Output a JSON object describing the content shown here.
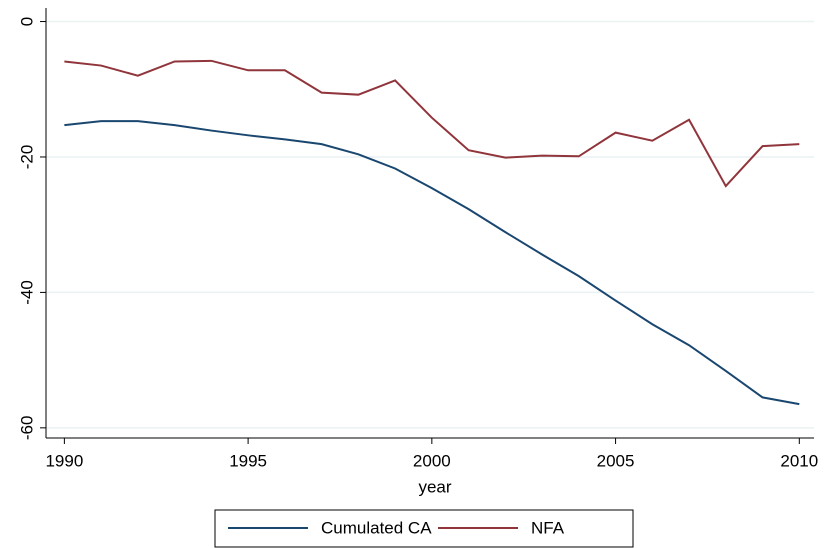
{
  "chart_data": {
    "type": "line",
    "x_label": "year",
    "x": [
      1990,
      1991,
      1992,
      1993,
      1994,
      1995,
      1996,
      1997,
      1998,
      1999,
      2000,
      2001,
      2002,
      2003,
      2004,
      2005,
      2006,
      2007,
      2008,
      2009,
      2010
    ],
    "series": [
      {
        "name": "Cumulated CA",
        "color": "#1a476f",
        "values": [
          -15.3,
          -14.7,
          -14.7,
          -15.3,
          -16.1,
          -16.8,
          -17.4,
          -18.1,
          -19.6,
          -21.7,
          -24.6,
          -27.7,
          -31.1,
          -34.4,
          -37.6,
          -41.2,
          -44.7,
          -47.8,
          -51.6,
          -55.5,
          -56.5
        ]
      },
      {
        "name": "NFA",
        "color": "#90353b",
        "values": [
          -5.9,
          -6.5,
          -8.0,
          -5.9,
          -5.8,
          -7.2,
          -7.2,
          -10.5,
          -10.8,
          -8.7,
          -14.2,
          -19.0,
          -20.1,
          -19.8,
          -19.9,
          -16.4,
          -17.6,
          -14.5,
          -24.3,
          -18.4,
          -18.1
        ]
      }
    ],
    "xlim": [
      1989.5,
      2010.4
    ],
    "xticks": [
      1990,
      1995,
      2000,
      2005,
      2010
    ],
    "ylim": [
      -61.5,
      2
    ],
    "yticks": [
      0,
      -20,
      -40,
      -60
    ],
    "grid": true,
    "legend": "bottom"
  }
}
